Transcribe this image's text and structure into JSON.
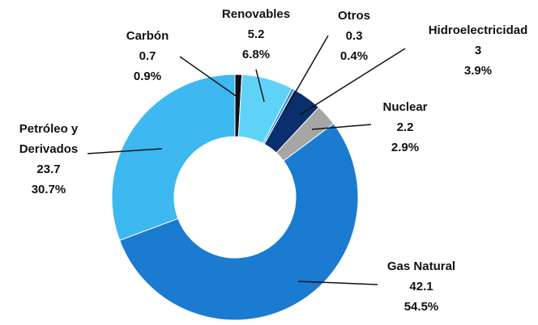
{
  "chart_data": {
    "type": "donut",
    "categories": [
      "Carbón",
      "Renovables",
      "Otros",
      "Hidroelectricidad",
      "Nuclear",
      "Gas Natural",
      "Petróleo y Derivados"
    ],
    "values": [
      0.7,
      5.2,
      0.3,
      3.0,
      2.2,
      42.1,
      23.7
    ],
    "percentages": [
      0.9,
      6.8,
      0.4,
      3.9,
      2.9,
      54.5,
      30.7
    ],
    "percentage_labels": [
      "0.9%",
      "6.8%",
      "0.4%",
      "3.9%",
      "2.9%",
      "54.5%",
      "30.7%"
    ],
    "colors": [
      "#111111",
      "#5fd3f7",
      "#2a8fe0",
      "#0b2f6e",
      "#a6a6a6",
      "#1a7bd1",
      "#3db8f0"
    ]
  }
}
